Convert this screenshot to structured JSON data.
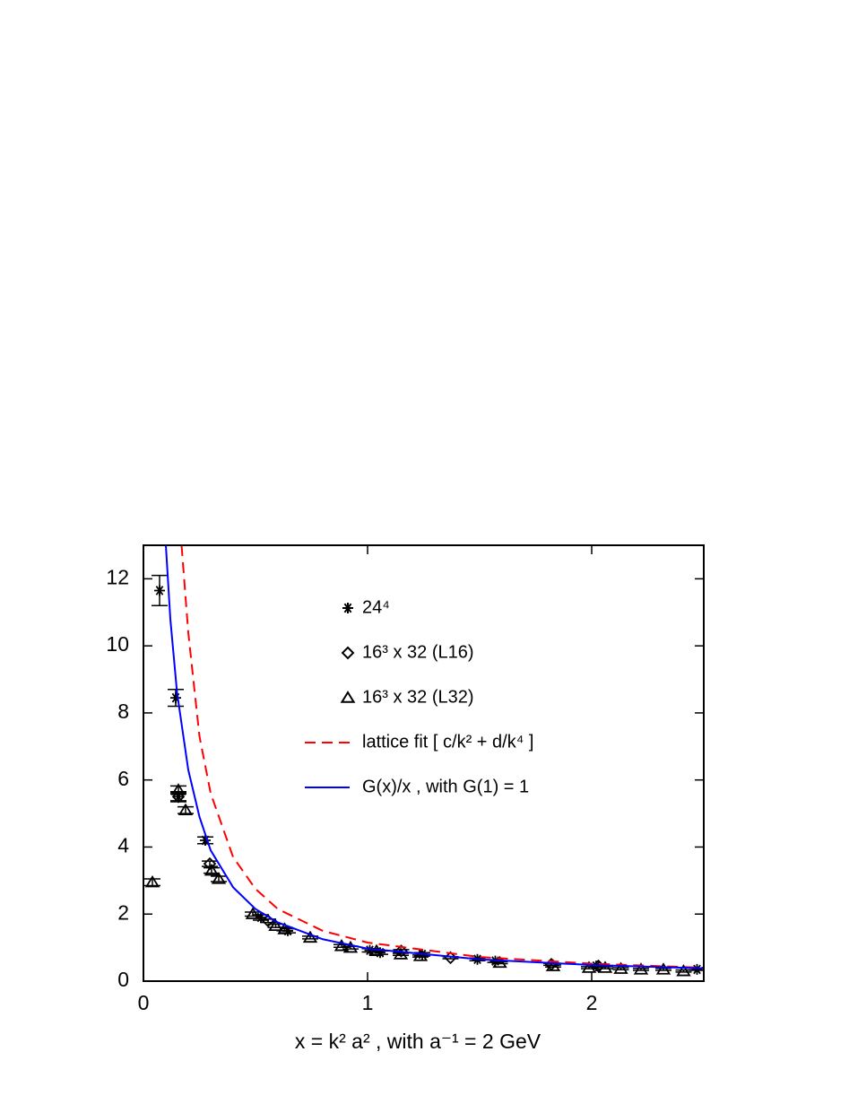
{
  "chart_data": {
    "type": "scatter",
    "x_label": "x = k² a² ,  with a⁻¹ = 2 GeV",
    "xlim": [
      0,
      2.5
    ],
    "xticks": [
      0,
      1,
      2
    ],
    "ylim": [
      0,
      13
    ],
    "yticks": [
      0,
      2,
      4,
      6,
      8,
      10,
      12
    ],
    "legend": "center",
    "series": [
      {
        "name": "24⁴",
        "marker": "star",
        "color": "#000000",
        "x": [
          0.072,
          0.144,
          0.156,
          0.276,
          0.524,
          0.644,
          1.01,
          1.056,
          1.244,
          1.49,
          1.57,
          2.02,
          2.47
        ],
        "values": [
          11.65,
          8.45,
          5.5,
          4.2,
          1.9,
          1.5,
          0.92,
          0.85,
          0.8,
          0.65,
          0.6,
          0.45,
          0.35
        ],
        "errors": [
          0.45,
          0.25,
          0.15,
          0.1,
          0.08,
          0.06,
          0.05,
          0.05,
          0.05,
          0.04,
          0.04,
          0.03,
          0.03
        ]
      },
      {
        "name": "16³ x 32  (L16)",
        "marker": "diamond",
        "color": "#000000",
        "x": [
          0.156,
          0.296,
          0.556,
          1.15,
          1.37,
          1.82,
          2.03
        ],
        "values": [
          5.5,
          3.5,
          1.8,
          0.9,
          0.7,
          0.5,
          0.45
        ],
        "errors": [
          0.12,
          0.08,
          0.05,
          0.04,
          0.03,
          0.03,
          0.03
        ]
      },
      {
        "name": "16³ x 32  (L32)",
        "marker": "triangle",
        "color": "#000000",
        "x": [
          0.04,
          0.156,
          0.188,
          0.304,
          0.336,
          0.488,
          0.59,
          0.63,
          0.744,
          0.884,
          0.924,
          1.04,
          1.148,
          1.236,
          1.59,
          1.828,
          1.988,
          2.06,
          2.13,
          2.22,
          2.32,
          2.41
        ],
        "values": [
          2.95,
          5.7,
          5.1,
          3.3,
          3.05,
          2.0,
          1.65,
          1.55,
          1.3,
          1.05,
          1.0,
          0.9,
          0.8,
          0.75,
          0.55,
          0.45,
          0.4,
          0.4,
          0.37,
          0.35,
          0.35,
          0.3
        ],
        "errors": [
          0.1,
          0.12,
          0.1,
          0.08,
          0.08,
          0.06,
          0.05,
          0.05,
          0.04,
          0.04,
          0.04,
          0.04,
          0.03,
          0.03,
          0.03,
          0.03,
          0.03,
          0.03,
          0.03,
          0.03,
          0.03,
          0.03
        ]
      },
      {
        "name": "lattice fit  [ c/k² + d/k⁴ ]",
        "line": "dashed",
        "color": "#ff0000",
        "x": [
          0.17,
          0.2,
          0.25,
          0.3,
          0.4,
          0.5,
          0.6,
          0.8,
          1.0,
          1.5,
          2.0,
          2.5
        ],
        "values": [
          13,
          10.4,
          7.3,
          5.6,
          3.7,
          2.75,
          2.15,
          1.5,
          1.15,
          0.72,
          0.52,
          0.4
        ]
      },
      {
        "name": "G(x)/x ,  with G(1) = 1",
        "line": "solid",
        "color": "#0000ff",
        "x": [
          0.1,
          0.12,
          0.15,
          0.2,
          0.25,
          0.3,
          0.4,
          0.5,
          0.6,
          0.8,
          1.0,
          1.5,
          2.0,
          2.5
        ],
        "values": [
          13,
          10.8,
          8.6,
          6.3,
          4.9,
          3.9,
          2.8,
          2.15,
          1.75,
          1.25,
          0.97,
          0.65,
          0.48,
          0.38
        ]
      }
    ]
  }
}
